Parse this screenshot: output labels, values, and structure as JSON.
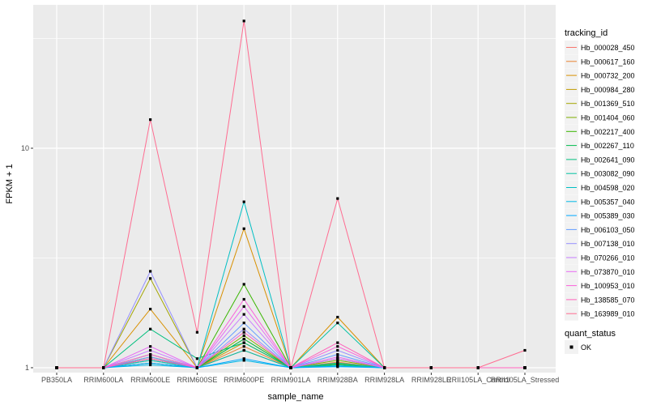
{
  "chart_data": {
    "type": "line",
    "xlabel": "sample_name",
    "ylabel": "FPKM + 1",
    "y_scale": "log10",
    "ylim": [
      0.95,
      45
    ],
    "y_ticks": [
      1,
      10
    ],
    "y_tick_labels": [
      "1",
      "10"
    ],
    "grid": true,
    "legend_position": "right",
    "categories": [
      "PB350LA",
      "RRIM600LA",
      "RRIM600LE",
      "RRIM600SE",
      "RRIM600PE",
      "RRIM901LA",
      "RRIM928BA",
      "RRIM928LA",
      "RRIM928LE",
      "RRII105LA_Control",
      "RRII105LA_Stressed"
    ],
    "category_labels": [
      "PB350LA",
      "RRIM600LA",
      "RRIM600LE",
      "RRIM600SE",
      "RRIM600PE",
      "RRIM901LA",
      "RRIM928BA",
      "RRIM928LA",
      "RRIM928LE",
      "RRII105LA_Control",
      "RRII105LA_Stressed"
    ],
    "legend": {
      "title": "tracking_id",
      "point_title": "quant_status",
      "point_label": "OK"
    },
    "series": [
      {
        "name": "Hb_000028_450",
        "color": "#F8766D",
        "values": [
          1,
          1,
          1.1,
          1,
          1.2,
          1,
          1.05,
          1,
          1,
          1,
          1
        ]
      },
      {
        "name": "Hb_000617_160",
        "color": "#EA8331",
        "values": [
          1,
          1,
          1.05,
          1,
          1.25,
          1,
          1.06,
          1,
          1,
          1,
          1
        ]
      },
      {
        "name": "Hb_000732_200",
        "color": "#D89000",
        "values": [
          1,
          1,
          1.85,
          1,
          4.3,
          1,
          1.7,
          1,
          1,
          1,
          1
        ]
      },
      {
        "name": "Hb_000984_280",
        "color": "#C09B00",
        "values": [
          1,
          1,
          1.12,
          1,
          1.3,
          1,
          1.1,
          1,
          1,
          1,
          1
        ]
      },
      {
        "name": "Hb_001369_510",
        "color": "#A3A500",
        "values": [
          1,
          1,
          2.55,
          1,
          1.35,
          1,
          1.05,
          1,
          1,
          1,
          1
        ]
      },
      {
        "name": "Hb_001404_060",
        "color": "#7CAE00",
        "values": [
          1,
          1,
          1.08,
          1,
          1.4,
          1,
          1.08,
          1,
          1,
          1,
          1
        ]
      },
      {
        "name": "Hb_002217_400",
        "color": "#39B600",
        "values": [
          1,
          1,
          1.15,
          1,
          2.4,
          1,
          1.04,
          1,
          1,
          1,
          1
        ]
      },
      {
        "name": "Hb_002267_110",
        "color": "#00BB4E",
        "values": [
          1,
          1,
          1.1,
          1,
          1.35,
          1,
          1.02,
          1,
          1,
          1,
          1
        ]
      },
      {
        "name": "Hb_002641_090",
        "color": "#00BF7D",
        "values": [
          1,
          1,
          1.5,
          1.1,
          1.3,
          1,
          1.03,
          1,
          1,
          1,
          1
        ]
      },
      {
        "name": "Hb_003082_090",
        "color": "#00C1A3",
        "values": [
          1,
          1,
          1.05,
          1,
          1.2,
          1,
          1.6,
          1,
          1,
          1,
          1
        ]
      },
      {
        "name": "Hb_004598_020",
        "color": "#00BFC4",
        "values": [
          1,
          1,
          1.08,
          1,
          5.7,
          1,
          1.05,
          1,
          1,
          1,
          1
        ]
      },
      {
        "name": "Hb_005357_040",
        "color": "#00B8E7",
        "values": [
          1,
          1,
          1.03,
          1,
          1.08,
          1,
          1.02,
          1,
          1,
          1,
          1
        ]
      },
      {
        "name": "Hb_005389_030",
        "color": "#00A9FF",
        "values": [
          1,
          1,
          1.05,
          1,
          1.1,
          1,
          1.01,
          1,
          1,
          1,
          1
        ]
      },
      {
        "name": "Hb_006103_050",
        "color": "#619CFF",
        "values": [
          1,
          1,
          1.12,
          1,
          1.6,
          1,
          1.15,
          1,
          1,
          1,
          1
        ]
      },
      {
        "name": "Hb_007138_010",
        "color": "#9590FF",
        "values": [
          1,
          1,
          2.75,
          1,
          1.5,
          1,
          1.2,
          1,
          1,
          1,
          1
        ]
      },
      {
        "name": "Hb_070266_010",
        "color": "#C77CFF",
        "values": [
          1,
          1,
          1.2,
          1,
          1.75,
          1,
          1.1,
          1,
          1,
          1,
          1
        ]
      },
      {
        "name": "Hb_073870_010",
        "color": "#E76BF3",
        "values": [
          1,
          1,
          1.25,
          1,
          1.9,
          1,
          1.12,
          1,
          1,
          1,
          1
        ]
      },
      {
        "name": "Hb_100953_010",
        "color": "#FA62DB",
        "values": [
          1,
          1,
          1.15,
          1,
          2.05,
          1,
          1.25,
          1,
          1,
          1,
          1
        ]
      },
      {
        "name": "Hb_138585_070",
        "color": "#FF62BC",
        "values": [
          1,
          1,
          1.1,
          1,
          1.45,
          1,
          1.3,
          1,
          1,
          1,
          1
        ]
      },
      {
        "name": "Hb_163989_010",
        "color": "#FF6C91",
        "values": [
          1,
          1,
          13.5,
          1.45,
          38.0,
          1,
          5.9,
          1,
          1,
          1,
          1.2
        ]
      }
    ]
  }
}
